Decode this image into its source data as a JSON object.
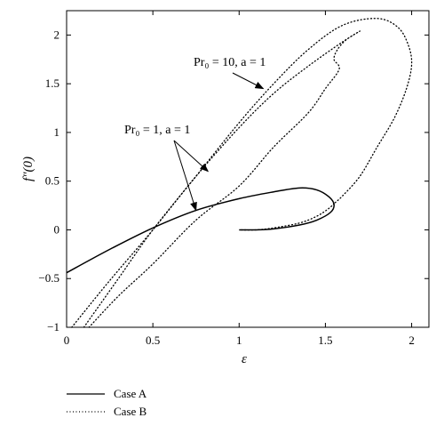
{
  "chart_data": {
    "type": "line",
    "xlabel": "ε",
    "ylabel": "f″(0)",
    "xlim": [
      0,
      2.1
    ],
    "ylim": [
      -1,
      2.25
    ],
    "x_ticks": [
      "0",
      "0.5",
      "1",
      "1.5",
      "2"
    ],
    "y_ticks": [
      "2",
      "1.5",
      "1",
      "0.5",
      "0",
      "−0.5",
      "−1"
    ],
    "grid": false,
    "legend_position": "bottom-left, below plot",
    "annotations": [
      {
        "text": "Pr₀ = 10, a = 1",
        "points_to": [
          1.14,
          1.45
        ]
      },
      {
        "text": "Pr₀ = 1, a = 1",
        "points_to": [
          [
            0.82,
            0.6
          ],
          [
            0.75,
            0.2
          ]
        ]
      }
    ],
    "series": [
      {
        "name": "Case A",
        "style": "solid",
        "x": [
          0,
          0.25,
          0.5,
          0.75,
          1.0,
          1.2,
          1.35,
          1.45,
          1.52,
          1.55,
          1.53,
          1.45,
          1.35,
          1.2,
          1.1,
          1.0
        ],
        "y": [
          -0.44,
          -0.2,
          0.02,
          0.2,
          0.32,
          0.39,
          0.43,
          0.41,
          0.34,
          0.26,
          0.18,
          0.1,
          0.05,
          0.01,
          0.0,
          0.0
        ]
      },
      {
        "name": "Case B",
        "style": "dotted",
        "x": [
          0.03,
          0.25,
          0.5,
          0.75,
          1.0,
          1.2,
          1.4,
          1.6,
          1.7,
          1.62,
          1.57,
          1.55,
          1.58,
          1.5,
          1.4,
          1.2,
          1.0,
          0.75,
          0.5,
          0.3,
          0.13
        ],
        "y": [
          -1.0,
          -0.52,
          0.0,
          0.55,
          1.05,
          1.4,
          1.68,
          1.93,
          2.04,
          1.95,
          1.85,
          1.75,
          1.65,
          1.45,
          1.2,
          0.85,
          0.45,
          0.1,
          -0.35,
          -0.68,
          -1.0
        ]
      },
      {
        "name": "Case B",
        "style": "dotted",
        "x": [
          0.1,
          0.3,
          0.5,
          0.75,
          1.0,
          1.2,
          1.4,
          1.6,
          1.8,
          1.92,
          1.98,
          2.0,
          1.97,
          1.9,
          1.8,
          1.7,
          1.6,
          1.55
        ],
        "y": [
          -1.0,
          -0.5,
          0.0,
          0.55,
          1.1,
          1.5,
          1.85,
          2.1,
          2.17,
          2.08,
          1.9,
          1.7,
          1.45,
          1.15,
          0.85,
          0.55,
          0.35,
          0.27
        ]
      },
      {
        "name": "Case B",
        "style": "dotted",
        "x": [
          1.55,
          1.52,
          1.45,
          1.35,
          1.2,
          1.1,
          1.0
        ],
        "y": [
          0.27,
          0.22,
          0.14,
          0.07,
          0.02,
          0.0,
          0.0
        ]
      }
    ],
    "legend": [
      {
        "label": "Case A",
        "style": "solid"
      },
      {
        "label": "Case B",
        "style": "dotted"
      }
    ]
  }
}
